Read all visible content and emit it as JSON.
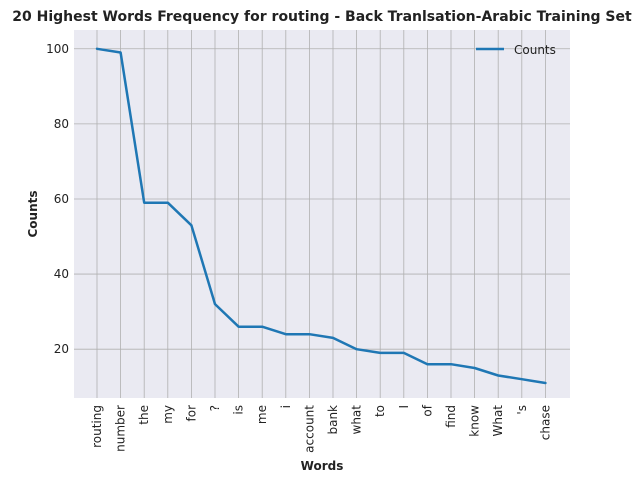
{
  "chart_data": {
    "type": "line",
    "title": "20 Highest Words Frequency for routing - Back Tranlsation-Arabic Training Set",
    "xlabel": "Words",
    "ylabel": "Counts",
    "categories": [
      "routing",
      "number",
      "the",
      "my",
      "for",
      "?",
      "is",
      "me",
      "i",
      "account",
      "bank",
      "what",
      "to",
      "I",
      "of",
      "find",
      "know",
      "What",
      "'s",
      "chase"
    ],
    "series": [
      {
        "name": "Counts",
        "values": [
          100,
          99,
          59,
          59,
          53,
          32,
          26,
          26,
          24,
          24,
          23,
          20,
          19,
          19,
          16,
          16,
          15,
          13,
          12,
          11
        ],
        "color": "#1f77b4"
      }
    ],
    "ylim": [
      7,
      105
    ],
    "yticks": [
      20,
      40,
      60,
      80,
      100
    ],
    "grid": true,
    "legend": "top-right",
    "background": "#eaeaf2",
    "grid_color": "#b0b0b0"
  }
}
